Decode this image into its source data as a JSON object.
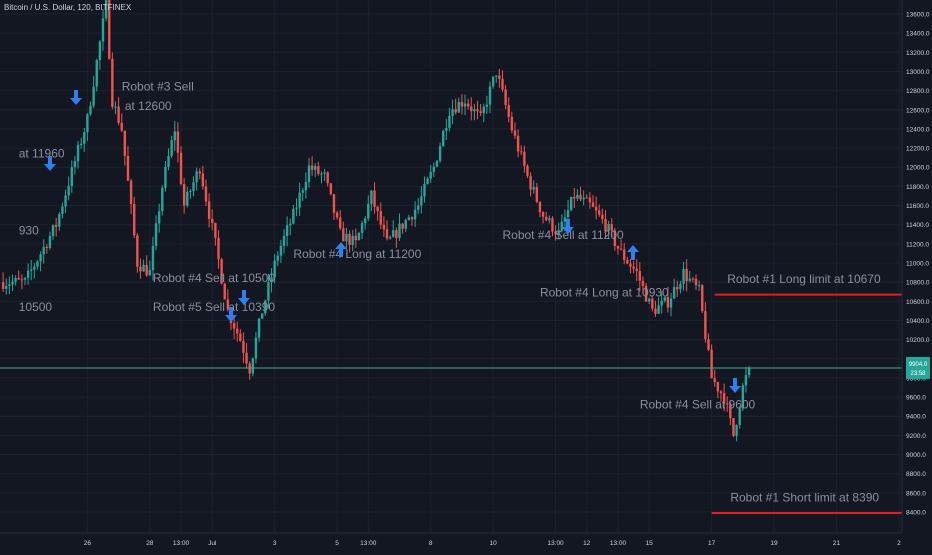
{
  "header": {
    "symbol": "Bitcoin / U.S. Dollar, 120, BITFINEX"
  },
  "colors": {
    "background": "#131722",
    "grid": "#1e222d",
    "up": "#26a69a",
    "down": "#ef5350",
    "annotation": "#8a8f9c",
    "arrow": "#2f80ed",
    "limit_line": "#e51c23",
    "price_line": "#4da48f",
    "axis_text": "#d1d4dc"
  },
  "price_tag": {
    "price": "9904.0",
    "time": "23:58"
  },
  "chart_data": {
    "type": "candlestick",
    "title": "Bitcoin / U.S. Dollar, 120, BITFINEX",
    "ylim": [
      8200,
      13700
    ],
    "y_ticks": [
      8400,
      8600,
      8800,
      9000,
      9200,
      9400,
      9600,
      9800,
      10000,
      10200,
      10400,
      10600,
      10800,
      11000,
      11200,
      11400,
      11600,
      11800,
      12000,
      12200,
      12400,
      12600,
      12800,
      13000,
      13200,
      13400,
      13600
    ],
    "y_tick_labels": [
      "8400.0",
      "8600.0",
      "8800.0",
      "9000.0",
      "9200.0",
      "9400.0",
      "9600.0",
      "9800.0",
      "10000.0",
      "10200.0",
      "10400.0",
      "10600.0",
      "10800.0",
      "11000.0",
      "11200.0",
      "11400.0",
      "11600.0",
      "11800.0",
      "12000.0",
      "12200.0",
      "12400.0",
      "12600.0",
      "12800.0",
      "13000.0",
      "13200.0",
      "13400.0",
      "13600.0"
    ],
    "x_ticks": [
      {
        "label": "26",
        "t": 2
      },
      {
        "label": "28",
        "t": 4
      },
      {
        "label": "13:00",
        "t": 5
      },
      {
        "label": "Jul",
        "t": 6
      },
      {
        "label": "3",
        "t": 8
      },
      {
        "label": "5",
        "t": 10
      },
      {
        "label": "13:00",
        "t": 11
      },
      {
        "label": "8",
        "t": 13
      },
      {
        "label": "10",
        "t": 15
      },
      {
        "label": "13:00",
        "t": 17
      },
      {
        "label": "12",
        "t": 18
      },
      {
        "label": "13:00",
        "t": 19
      },
      {
        "label": "15",
        "t": 20
      },
      {
        "label": "17",
        "t": 22
      },
      {
        "label": "19",
        "t": 24
      },
      {
        "label": "21",
        "t": 26
      },
      {
        "label": "2",
        "t": 28
      }
    ],
    "price_path": [
      [
        0,
        10800
      ],
      [
        0.5,
        11100
      ],
      [
        1.0,
        11400
      ],
      [
        1.5,
        11950
      ],
      [
        2.0,
        12500
      ],
      [
        2.6,
        13700
      ],
      [
        2.8,
        12700
      ],
      [
        3.1,
        12400
      ],
      [
        3.6,
        11000
      ],
      [
        4.0,
        10900
      ],
      [
        4.4,
        11800
      ],
      [
        4.8,
        12400
      ],
      [
        5.1,
        11600
      ],
      [
        5.6,
        12000
      ],
      [
        6.1,
        11200
      ],
      [
        6.5,
        10500
      ],
      [
        6.9,
        10200
      ],
      [
        7.2,
        9900
      ],
      [
        7.6,
        10500
      ],
      [
        8.1,
        11100
      ],
      [
        8.6,
        11500
      ],
      [
        9.1,
        12000
      ],
      [
        9.6,
        11900
      ],
      [
        10.1,
        11300
      ],
      [
        10.6,
        11200
      ],
      [
        11.1,
        11700
      ],
      [
        11.6,
        11200
      ],
      [
        12.1,
        11400
      ],
      [
        12.6,
        11600
      ],
      [
        13.1,
        12000
      ],
      [
        13.6,
        12600
      ],
      [
        14.1,
        12700
      ],
      [
        14.6,
        12500
      ],
      [
        15.1,
        13000
      ],
      [
        15.6,
        12400
      ],
      [
        16.1,
        11900
      ],
      [
        16.6,
        11500
      ],
      [
        17.1,
        11300
      ],
      [
        17.6,
        11700
      ],
      [
        18.1,
        11600
      ],
      [
        18.6,
        11400
      ],
      [
        19.1,
        11100
      ],
      [
        19.6,
        10900
      ],
      [
        20.1,
        10500
      ],
      [
        20.6,
        10600
      ],
      [
        21.1,
        10900
      ],
      [
        21.6,
        10700
      ],
      [
        22.0,
        9800
      ],
      [
        22.4,
        9600
      ],
      [
        22.7,
        9200
      ],
      [
        23.0,
        9700
      ],
      [
        23.2,
        9900
      ]
    ],
    "last_price": 9904,
    "annotations": [
      {
        "text": "Robot #3 Sell",
        "t": 3.1,
        "price": 12800,
        "arrow": "down"
      },
      {
        "text": "at 12600",
        "t": 3.2,
        "price": 12600
      },
      {
        "text": "at 11960",
        "t": -0.2,
        "price": 12100,
        "arrow": "down"
      },
      {
        "text": "930",
        "t": -0.2,
        "price": 11300
      },
      {
        "text": "10500",
        "t": -0.2,
        "price": 10500
      },
      {
        "text": "Robot #4 Sell at 10500",
        "t": 4.1,
        "price": 10800,
        "arrow": "down"
      },
      {
        "text": "Robot #5 Sell at 10390",
        "t": 4.1,
        "price": 10500,
        "arrow": "down"
      },
      {
        "text": "Robot #4 Long at 11200",
        "t": 8.6,
        "price": 11050,
        "arrow": "up"
      },
      {
        "text": "Robot #4 Sell at 11200",
        "t": 15.3,
        "price": 11250,
        "arrow": "down"
      },
      {
        "text": "Robot #4 Long at 10930",
        "t": 16.5,
        "price": 10650,
        "arrow": "up"
      },
      {
        "text": "Robot #4 Sell at 9600",
        "t": 19.7,
        "price": 9480,
        "arrow": "down"
      },
      {
        "text": "Robot #1 Long limit at 10670",
        "t": 22.5,
        "price": 10790
      },
      {
        "text": "Robot #1 Short limit at 8390",
        "t": 22.6,
        "price": 8510
      }
    ],
    "limits": [
      {
        "name": "Robot #1 Long limit",
        "price": 10670,
        "t_start": 22.1
      },
      {
        "name": "Robot #1 Short limit",
        "price": 8390,
        "t_start": 22.0
      }
    ]
  }
}
